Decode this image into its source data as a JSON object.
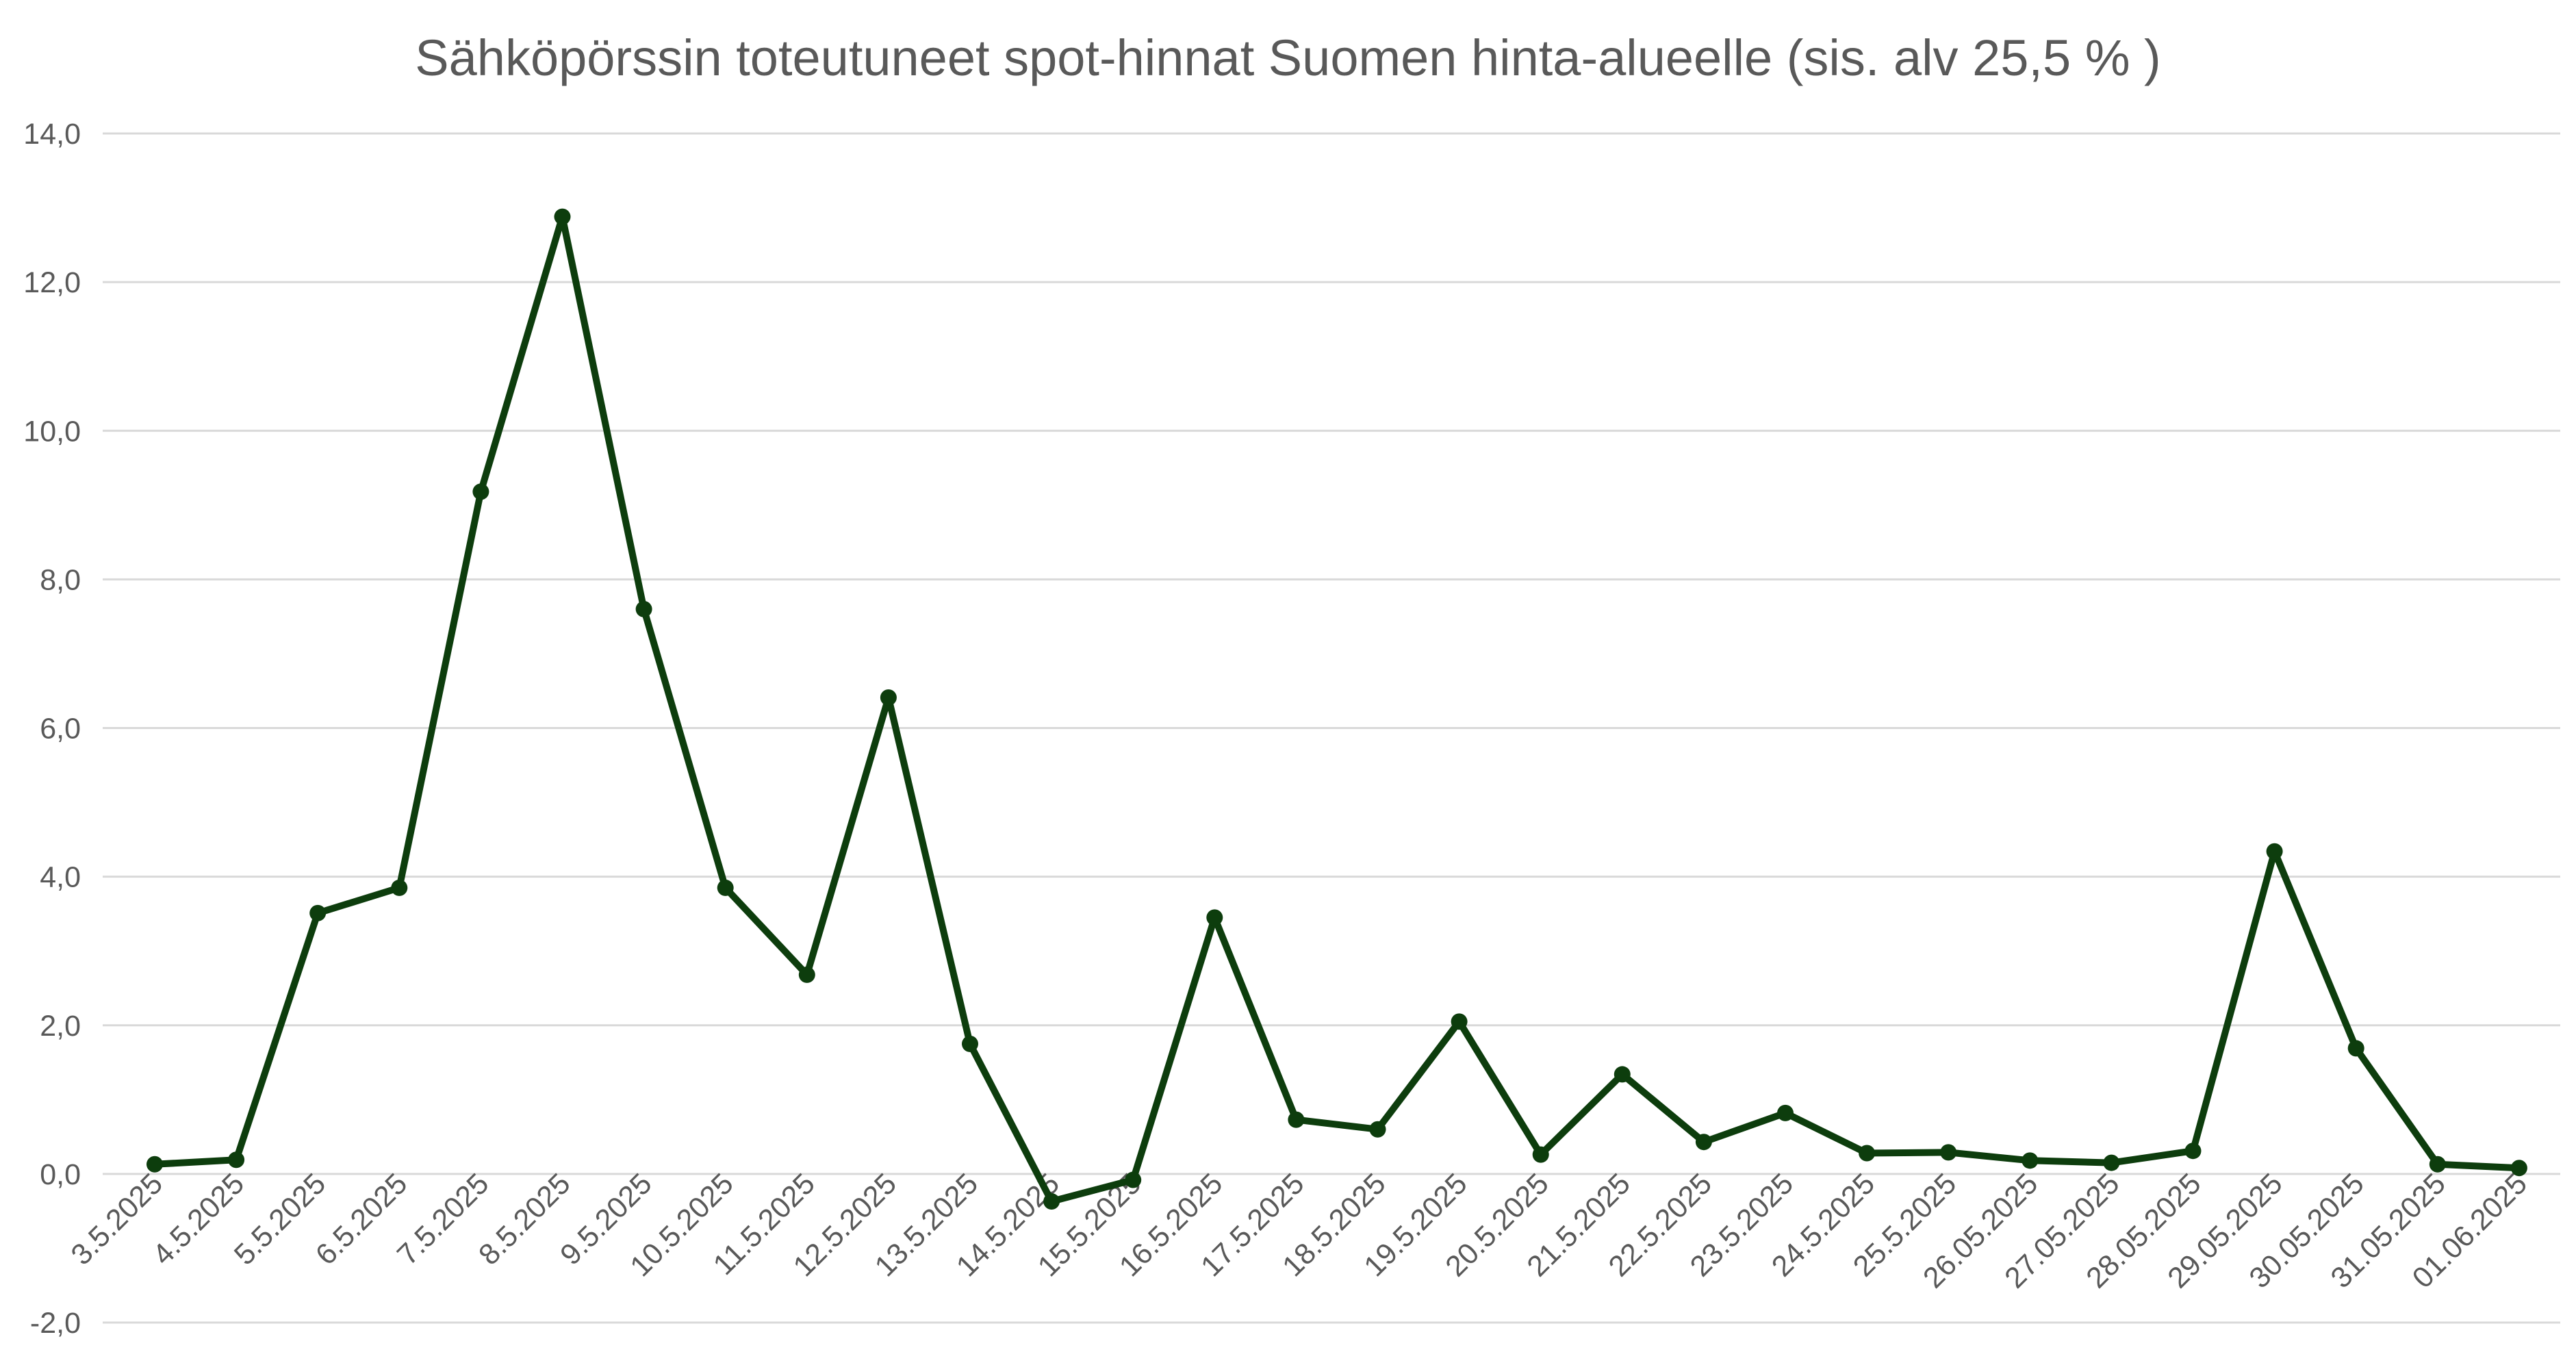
{
  "chart_data": {
    "type": "line",
    "title": "Sähköpörssin toteutuneet spot-hinnat Suomen hinta-alueelle (sis. alv 25,5 % )",
    "xlabel": "",
    "ylabel": "",
    "ylim": [
      -2.0,
      14.0
    ],
    "yticks": [
      14.0,
      12.0,
      10.0,
      8.0,
      6.0,
      4.0,
      2.0,
      0.0,
      -2.0
    ],
    "ytick_labels": [
      "14,0",
      "12,0",
      "10,0",
      "8,0",
      "6,0",
      "4,0",
      "2,0",
      "0,0",
      "-2,0"
    ],
    "grid": true,
    "legend": "none",
    "color": "#0d3d0d",
    "categories": [
      "3.5.2025",
      "4.5.2025",
      "5.5.2025",
      "6.5.2025",
      "7.5.2025",
      "8.5.2025",
      "9.5.2025",
      "10.5.2025",
      "11.5.2025",
      "12.5.2025",
      "13.5.2025",
      "14.5.2025",
      "15.5.2025",
      "16.5.2025",
      "17.5.2025",
      "18.5.2025",
      "19.5.2025",
      "20.5.2025",
      "21.5.2025",
      "22.5.2025",
      "23.5.2025",
      "24.5.2025",
      "25.5.2025",
      "26.05.2025",
      "27.05.2025",
      "28.05.2025",
      "29.05.2025",
      "30.05.2025",
      "31.05.2025",
      "01.06.2025"
    ],
    "series": [
      {
        "values": [
          0.13,
          0.19,
          3.51,
          3.85,
          9.18,
          12.88,
          7.6,
          3.85,
          2.68,
          6.41,
          1.75,
          -0.37,
          -0.08,
          3.45,
          0.73,
          0.6,
          2.05,
          0.26,
          1.34,
          0.43,
          0.82,
          0.28,
          0.29,
          0.18,
          0.15,
          0.31,
          4.34,
          1.69,
          0.13,
          0.08
        ]
      }
    ]
  }
}
